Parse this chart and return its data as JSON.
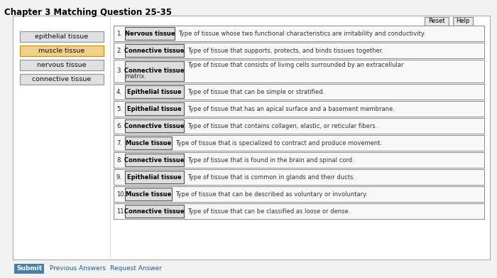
{
  "title": "Chapter 3 Matching Question 25-35",
  "bg_color": "#f2f2f2",
  "panel_bg": "#ffffff",
  "panel_border": "#aaaaaa",
  "left_labels": [
    {
      "text": "epithelial tissue",
      "bg": "#e0e0e0",
      "border": "#999999"
    },
    {
      "text": "muscle tissue",
      "bg": "#f0d08a",
      "border": "#c8960a"
    },
    {
      "text": "nervous tissue",
      "bg": "#e0e0e0",
      "border": "#999999"
    },
    {
      "text": "connective tissue",
      "bg": "#e0e0e0",
      "border": "#999999"
    }
  ],
  "questions": [
    {
      "num": "1.",
      "answer": "Nervous tissue",
      "text": "Type of tissue whose two functional characteristics are irritability and conductivity.",
      "two_line": false
    },
    {
      "num": "2.",
      "answer": "Connective tissue",
      "text": "Type of tissue that supports, protects, and binds tissues together.",
      "two_line": false
    },
    {
      "num": "3.",
      "answer": "Connective tissue",
      "text1": "Type of tissue that consists of living cells surrounded by an extracellular",
      "text2": "matrix.",
      "two_line": true
    },
    {
      "num": "4.",
      "answer": "Epithelial tissue",
      "text": "Type of tissue that can be simple or stratified.",
      "two_line": false
    },
    {
      "num": "5.",
      "answer": "Epithelial tissue",
      "text": "Type of tissue that has an apical surface and a basement membrane.",
      "two_line": false
    },
    {
      "num": "6.",
      "answer": "Connective tissue",
      "text": "Type of tissue that contains collagen, elastic, or reticular fibers.",
      "two_line": false
    },
    {
      "num": "7.",
      "answer": "Muscle tissue",
      "text": "Type of tissue that is specialized to contract and produce movement.",
      "two_line": false
    },
    {
      "num": "8.",
      "answer": "Connective tissue",
      "text": "Type of tissue that is found in the brain and spinal cord.",
      "two_line": false
    },
    {
      "num": "9.",
      "answer": "Epithelial tissue",
      "text": "Type of tissue that is common in glands and their ducts.",
      "two_line": false
    },
    {
      "num": "10.",
      "answer": "Muscle tissue",
      "text": "Type of tissue that can be described as voluntary or involuntary.",
      "two_line": false
    },
    {
      "num": "11.",
      "answer": "Connective tissue",
      "text": "Type of tissue that can be classified as loose or dense.",
      "two_line": false
    }
  ],
  "submit_text": "Submit",
  "submit_bg": "#4a7fa8",
  "submit_text_color": "#ffffff",
  "prev_answers": "Previous Answers",
  "req_answer": "Request Answer",
  "reset_text": "Reset",
  "help_text": "Help"
}
